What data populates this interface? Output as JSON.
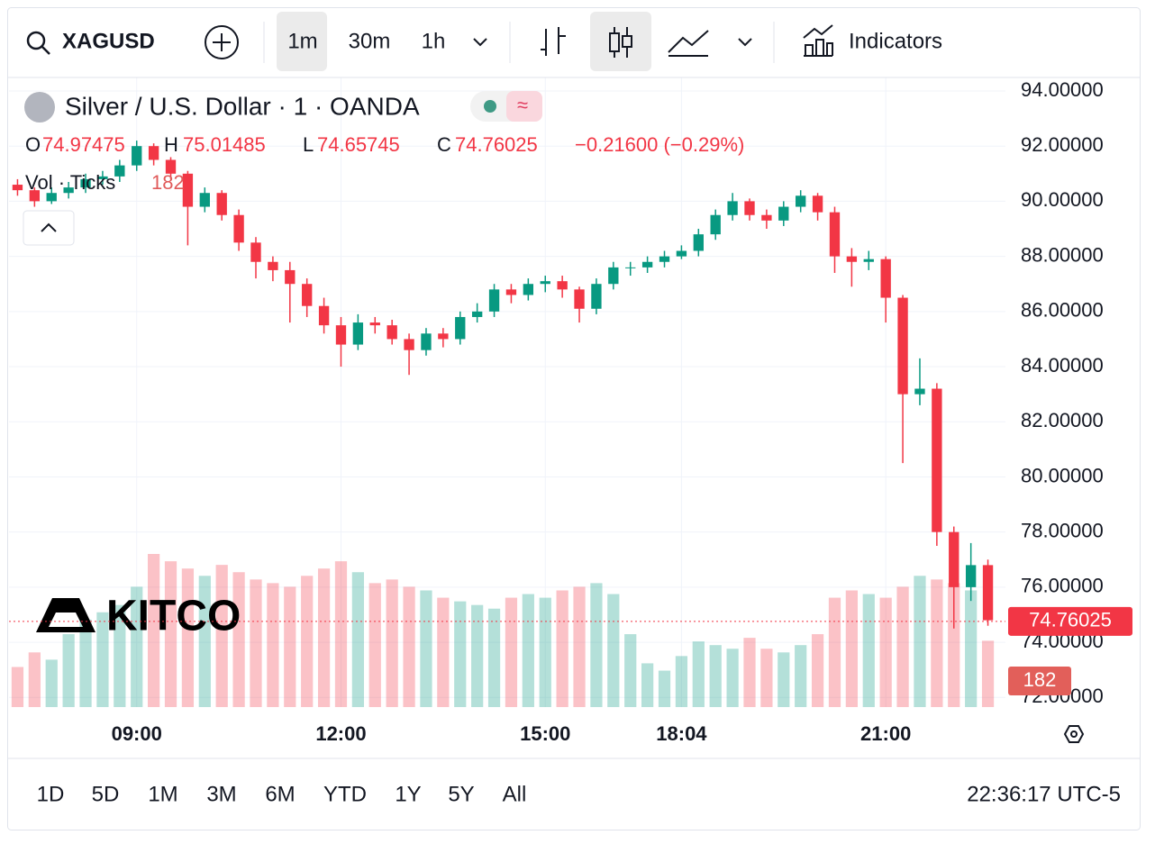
{
  "toolbar": {
    "symbol": "XAGUSD",
    "intervals": [
      "1m",
      "30m",
      "1h"
    ],
    "indicators": "Indicators"
  },
  "legend": {
    "title": "Silver / U.S. Dollar · 1 · OANDA",
    "ohlc": [
      {
        "key": "O",
        "value": 74.97475
      },
      {
        "key": "H",
        "value": 75.01485
      },
      {
        "key": "L",
        "value": 74.65745
      },
      {
        "key": "C",
        "value": 74.76025
      }
    ],
    "change": "−0.21600 (−0.29%)",
    "volume_label": "Vol · Ticks"
  },
  "watermark": "KITCO",
  "ranges": [
    "1D",
    "5D",
    "1M",
    "3M",
    "6M",
    "YTD",
    "1Y",
    "5Y",
    "All"
  ],
  "clock": "22:36:17 UTC-5",
  "chart_data": {
    "type": "candlestick",
    "up_color": "#089981",
    "down_color": "#f23645",
    "grid": true,
    "last_price": 74.76025,
    "categories": [
      null,
      null,
      null,
      null,
      null,
      null,
      null,
      "09:00",
      null,
      null,
      null,
      null,
      null,
      null,
      null,
      null,
      null,
      null,
      null,
      "12:00",
      null,
      null,
      null,
      null,
      null,
      null,
      null,
      null,
      null,
      null,
      null,
      "15:00",
      null,
      null,
      null,
      null,
      null,
      null,
      null,
      "18:04",
      null,
      null,
      null,
      null,
      null,
      null,
      null,
      null,
      null,
      null,
      null,
      "21:00",
      null,
      null,
      null,
      null,
      null,
      null
    ],
    "open": [
      90.6,
      90.4,
      90.0,
      90.3,
      90.5,
      90.8,
      90.9,
      91.3,
      92.0,
      91.5,
      91.0,
      89.8,
      90.3,
      89.5,
      88.5,
      87.8,
      87.5,
      87.0,
      86.2,
      85.5,
      84.8,
      85.6,
      85.5,
      85.0,
      84.6,
      85.2,
      85.0,
      85.8,
      86.0,
      86.8,
      86.6,
      87.0,
      87.1,
      86.8,
      86.1,
      87.0,
      87.6,
      87.6,
      87.8,
      88.0,
      88.2,
      88.8,
      89.5,
      90.0,
      89.5,
      89.3,
      89.8,
      90.2,
      89.6,
      88.0,
      87.8,
      87.9,
      86.5,
      83.0,
      83.2,
      78.0,
      76.0,
      76.8
    ],
    "high": [
      90.8,
      90.5,
      90.5,
      90.7,
      91.0,
      91.1,
      91.5,
      92.2,
      92.1,
      91.6,
      91.1,
      90.5,
      90.4,
      89.7,
      88.7,
      88.0,
      87.8,
      87.2,
      86.5,
      85.8,
      85.9,
      85.8,
      85.7,
      85.2,
      85.4,
      85.4,
      86.0,
      86.3,
      87.0,
      87.0,
      87.2,
      87.3,
      87.3,
      86.9,
      87.2,
      87.8,
      87.8,
      88.0,
      88.2,
      88.4,
      89.0,
      89.7,
      90.3,
      90.1,
      89.7,
      90.0,
      90.4,
      90.3,
      89.8,
      88.3,
      88.2,
      88.0,
      86.6,
      84.3,
      83.4,
      78.2,
      77.6,
      77.0
    ],
    "low": [
      90.2,
      89.8,
      89.9,
      90.1,
      90.3,
      90.6,
      90.7,
      91.1,
      91.3,
      90.8,
      88.4,
      89.6,
      89.3,
      88.2,
      87.2,
      87.1,
      85.6,
      85.8,
      85.2,
      84.0,
      84.6,
      85.2,
      84.8,
      83.7,
      84.4,
      84.7,
      84.8,
      85.6,
      85.8,
      86.3,
      86.4,
      86.7,
      86.5,
      85.6,
      85.9,
      86.8,
      87.3,
      87.4,
      87.6,
      87.9,
      88.0,
      88.6,
      89.3,
      89.3,
      89.0,
      89.1,
      89.6,
      89.3,
      87.4,
      86.9,
      87.5,
      85.6,
      80.5,
      82.6,
      77.5,
      74.5,
      75.5,
      74.6
    ],
    "close": [
      90.4,
      90.0,
      90.3,
      90.5,
      90.8,
      90.9,
      91.3,
      92.0,
      91.5,
      91.0,
      89.8,
      90.3,
      89.5,
      88.5,
      87.8,
      87.5,
      87.0,
      86.2,
      85.5,
      84.8,
      85.6,
      85.5,
      85.0,
      84.6,
      85.2,
      85.0,
      85.8,
      86.0,
      86.8,
      86.6,
      87.0,
      87.1,
      86.8,
      86.1,
      87.0,
      87.6,
      87.6,
      87.8,
      88.0,
      88.2,
      88.8,
      89.5,
      90.0,
      89.5,
      89.3,
      89.8,
      90.2,
      89.6,
      88.0,
      87.8,
      87.9,
      86.5,
      83.0,
      83.2,
      78.0,
      76.0,
      76.8,
      74.8
    ],
    "volume": [
      110,
      150,
      130,
      200,
      240,
      260,
      280,
      330,
      420,
      400,
      380,
      360,
      390,
      370,
      350,
      340,
      330,
      360,
      380,
      400,
      370,
      340,
      350,
      330,
      320,
      300,
      290,
      280,
      270,
      300,
      310,
      300,
      320,
      330,
      340,
      310,
      200,
      120,
      100,
      140,
      180,
      170,
      160,
      190,
      160,
      150,
      170,
      200,
      300,
      320,
      310,
      300,
      330,
      360,
      350,
      340,
      320,
      182
    ],
    "ylim": [
      71.65,
      94.49
    ],
    "yticks": [
      {
        "value": 72,
        "label": "72.00000"
      },
      {
        "value": 74,
        "label": "74.00000"
      },
      {
        "value": 76,
        "label": "76.00000"
      },
      {
        "value": 78,
        "label": "78.00000"
      },
      {
        "value": 80,
        "label": "80.00000"
      },
      {
        "value": 82,
        "label": "82.00000"
      },
      {
        "value": 84,
        "label": "84.00000"
      },
      {
        "value": 86,
        "label": "86.00000"
      },
      {
        "value": 88,
        "label": "88.00000"
      },
      {
        "value": 90,
        "label": "90.00000"
      },
      {
        "value": 92,
        "label": "92.00000"
      },
      {
        "value": 94,
        "label": "94.00000"
      }
    ]
  }
}
